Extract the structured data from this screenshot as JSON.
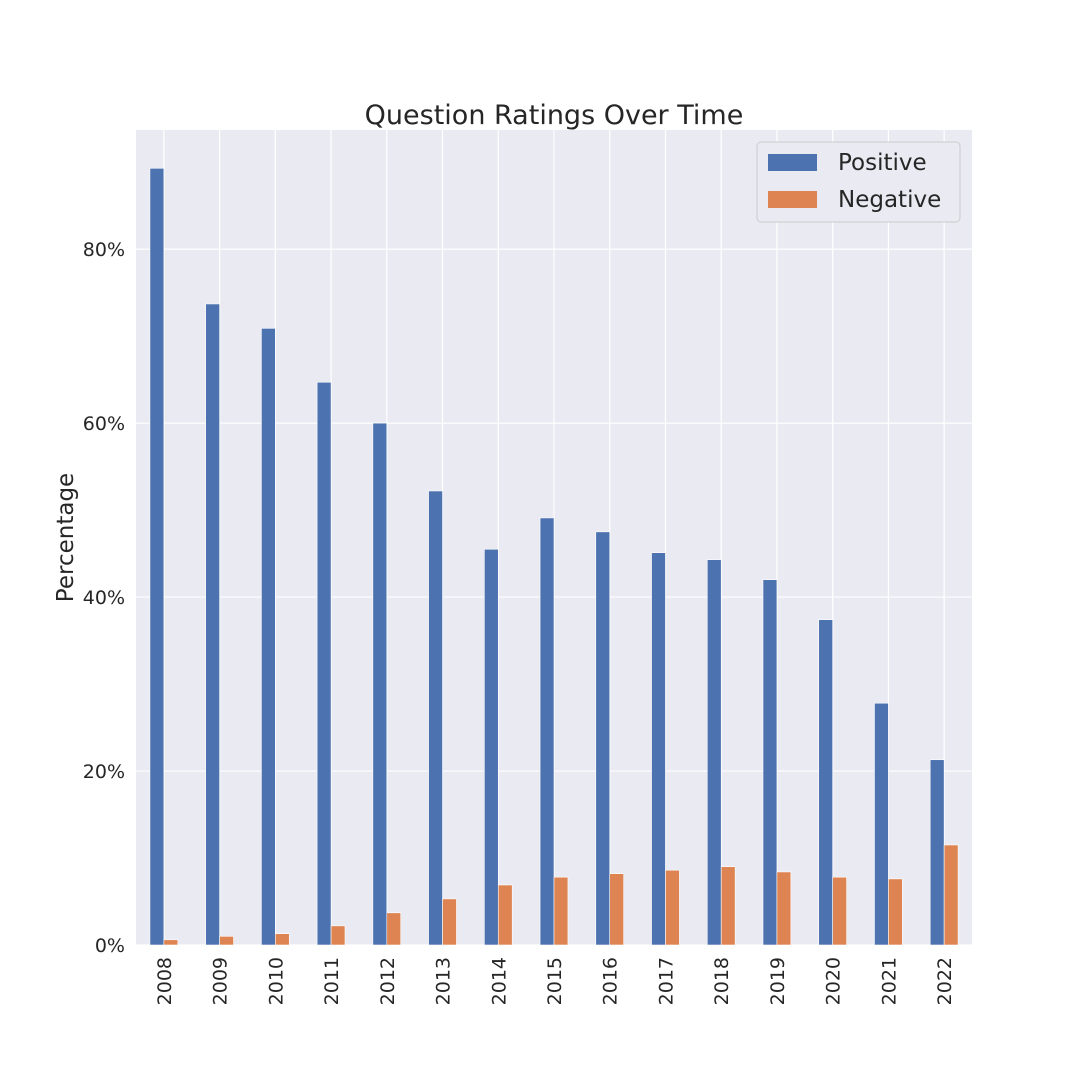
{
  "chart_data": {
    "type": "bar",
    "title": "Question Ratings Over Time",
    "xlabel": "",
    "ylabel": "Percentage",
    "categories": [
      "2008",
      "2009",
      "2010",
      "2011",
      "2012",
      "2013",
      "2014",
      "2015",
      "2016",
      "2017",
      "2018",
      "2019",
      "2020",
      "2021",
      "2022"
    ],
    "series": [
      {
        "name": "Positive",
        "color": "#4c72b0",
        "values": [
          89.3,
          73.7,
          70.9,
          64.7,
          60.0,
          52.2,
          45.5,
          49.1,
          47.5,
          45.1,
          44.3,
          42.0,
          37.4,
          27.8,
          21.3
        ]
      },
      {
        "name": "Negative",
        "color": "#dd8452",
        "values": [
          0.6,
          1.0,
          1.3,
          2.2,
          3.7,
          5.3,
          6.9,
          7.8,
          8.2,
          8.6,
          9.0,
          8.4,
          7.8,
          7.6,
          11.5
        ]
      }
    ],
    "ylim": [
      0,
      93.7
    ],
    "yticks": [
      0,
      20,
      40,
      60,
      80
    ],
    "ytick_labels": [
      "0%",
      "20%",
      "40%",
      "60%",
      "80%"
    ],
    "grid": true,
    "legend": "top-right",
    "background": "#eaeaf2"
  }
}
